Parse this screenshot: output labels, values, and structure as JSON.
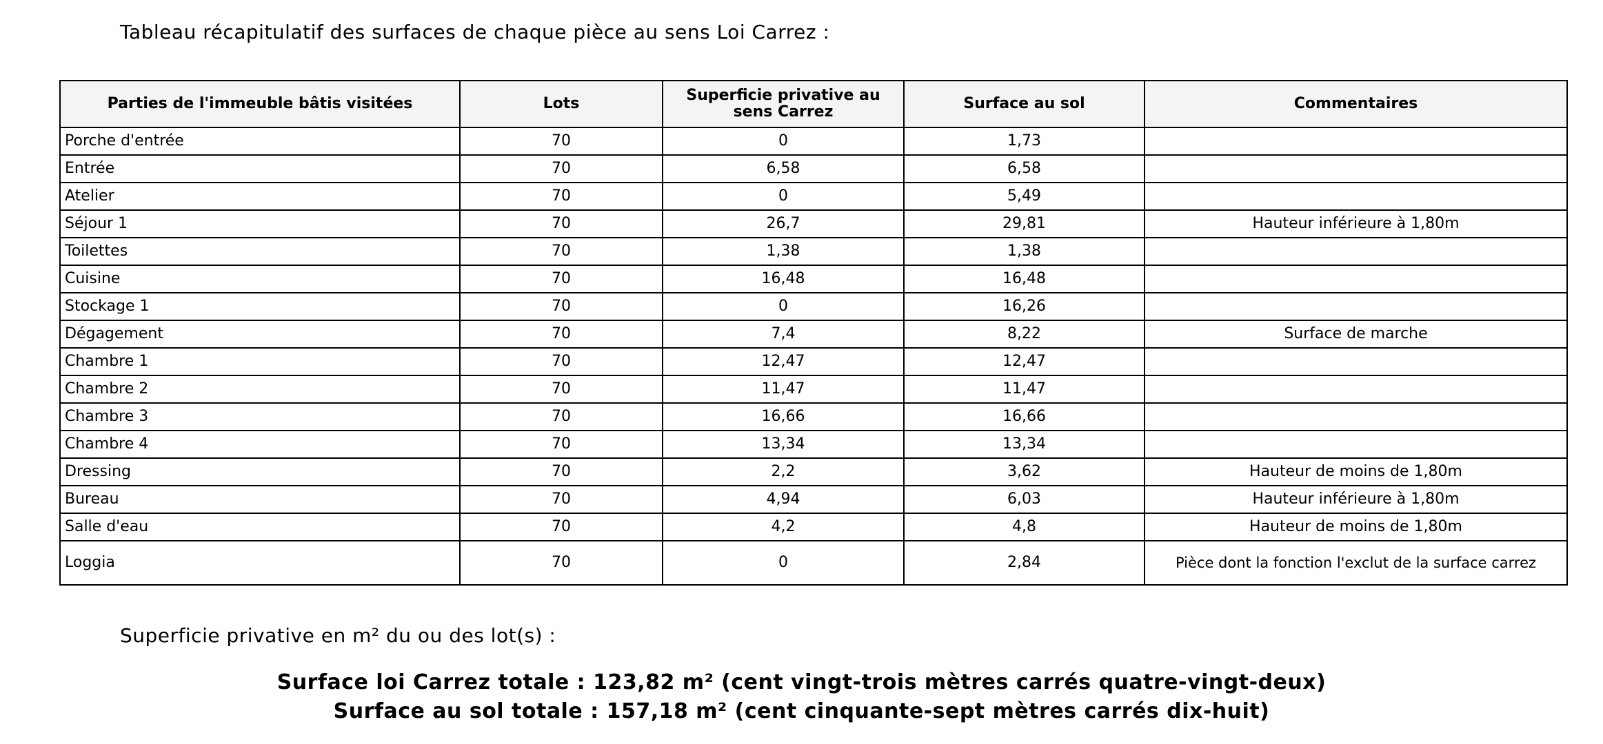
{
  "header": {
    "title": "Tableau récapitulatif des surfaces de chaque pièce au sens Loi Carrez :"
  },
  "table": {
    "columns": [
      "Parties de l'immeuble bâtis visitées",
      "Lots",
      "Superficie privative au sens Carrez",
      "Surface au sol",
      "Commentaires"
    ],
    "rows": [
      [
        "Porche d'entrée",
        "70",
        "0",
        "1,73",
        null
      ],
      [
        "Entrée",
        "70",
        "6,58",
        "6,58",
        null
      ],
      [
        "Atelier",
        "70",
        "0",
        "5,49",
        null
      ],
      [
        "Séjour 1",
        "70",
        "26,7",
        "29,81",
        "Hauteur inférieure à 1,80m"
      ],
      [
        "Toilettes",
        "70",
        "1,38",
        "1,38",
        null
      ],
      [
        "Cuisine",
        "70",
        "16,48",
        "16,48",
        null
      ],
      [
        "Stockage 1",
        "70",
        "0",
        "16,26",
        null
      ],
      [
        "Dégagement",
        "70",
        "7,4",
        "8,22",
        "Surface de marche"
      ],
      [
        "Chambre 1",
        "70",
        "12,47",
        "12,47",
        null
      ],
      [
        "Chambre 2",
        "70",
        "11,47",
        "11,47",
        null
      ],
      [
        "Chambre 3",
        "70",
        "16,66",
        "16,66",
        null
      ],
      [
        "Chambre 4",
        "70",
        "13,34",
        "13,34",
        null
      ],
      [
        "Dressing",
        "70",
        "2,2",
        "3,62",
        "Hauteur de moins de 1,80m"
      ],
      [
        "Bureau",
        "70",
        "4,94",
        "6,03",
        "Hauteur inférieure à 1,80m"
      ],
      [
        "Salle d'eau",
        "70",
        "4,2",
        "4,8",
        "Hauteur de moins de 1,80m"
      ],
      [
        "Loggia",
        "70",
        "0",
        "2,84",
        "Pièce dont la fonction l'exclut de la surface carrez"
      ]
    ]
  },
  "footer": {
    "label": "Superficie privative en m² du ou des lot(s) :",
    "totals": [
      "Surface loi Carrez totale : 123,82 m² (cent vingt-trois mètres carrés quatre-vingt-deux)",
      "Surface au sol totale : 157,18 m² (cent cinquante-sept mètres carrés dix-huit)"
    ]
  }
}
